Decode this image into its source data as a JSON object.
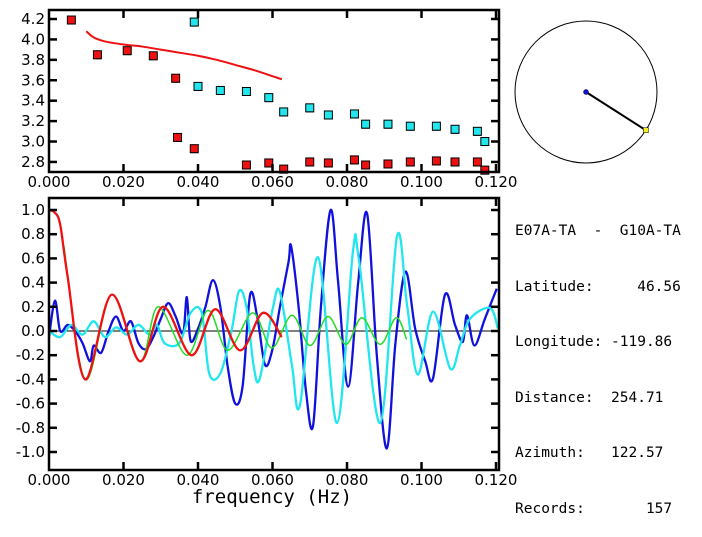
{
  "chart_data": [
    {
      "type": "scatter",
      "xlim": [
        0,
        0.12
      ],
      "ylim": [
        2.7,
        4.29
      ],
      "x_ticks": [
        "0.000",
        "0.020",
        "0.040",
        "0.060",
        "0.080",
        "0.100",
        "0.120"
      ],
      "y_ticks": [
        "2.8",
        "3.0",
        "3.2",
        "3.4",
        "3.6",
        "3.8",
        "4.0",
        "4.2"
      ],
      "grid": false,
      "series": [
        {
          "color": "#ee1111",
          "marker": "square",
          "points": [
            [
              0.006,
              4.19
            ],
            [
              0.013,
              3.85
            ],
            [
              0.021,
              3.89
            ],
            [
              0.028,
              3.84
            ],
            [
              0.034,
              3.62
            ],
            [
              0.0345,
              3.04
            ],
            [
              0.039,
              2.93
            ],
            [
              0.053,
              2.77
            ],
            [
              0.059,
              2.79
            ],
            [
              0.063,
              2.73
            ],
            [
              0.07,
              2.8
            ],
            [
              0.075,
              2.79
            ],
            [
              0.082,
              2.82
            ],
            [
              0.085,
              2.77
            ],
            [
              0.091,
              2.78
            ],
            [
              0.097,
              2.8
            ],
            [
              0.104,
              2.81
            ],
            [
              0.109,
              2.8
            ],
            [
              0.115,
              2.8
            ],
            [
              0.117,
              2.72
            ]
          ]
        },
        {
          "color": "#22e6ee",
          "marker": "square",
          "points": [
            [
              0.039,
              4.17
            ],
            [
              0.04,
              3.54
            ],
            [
              0.046,
              3.5
            ],
            [
              0.053,
              3.49
            ],
            [
              0.059,
              3.43
            ],
            [
              0.063,
              3.29
            ],
            [
              0.07,
              3.33
            ],
            [
              0.075,
              3.26
            ],
            [
              0.082,
              3.27
            ],
            [
              0.085,
              3.17
            ],
            [
              0.091,
              3.17
            ],
            [
              0.097,
              3.15
            ],
            [
              0.104,
              3.15
            ],
            [
              0.109,
              3.12
            ],
            [
              0.115,
              3.1
            ],
            [
              0.117,
              3.0
            ]
          ]
        },
        {
          "color": "#ee1111",
          "marker": "line",
          "points": [
            [
              0.01,
              4.08
            ],
            [
              0.012,
              4.02
            ],
            [
              0.015,
              3.98
            ],
            [
              0.02,
              3.95
            ],
            [
              0.025,
              3.93
            ],
            [
              0.03,
              3.9
            ],
            [
              0.035,
              3.87
            ],
            [
              0.04,
              3.84
            ],
            [
              0.045,
              3.8
            ],
            [
              0.05,
              3.75
            ],
            [
              0.055,
              3.7
            ],
            [
              0.06,
              3.64
            ],
            [
              0.0625,
              3.61
            ]
          ]
        }
      ]
    },
    {
      "type": "line",
      "xlabel": "frequency (Hz)",
      "xlim": [
        0,
        0.12
      ],
      "ylim": [
        -1.15,
        1.1
      ],
      "x_ticks": [
        "0.000",
        "0.020",
        "0.040",
        "0.060",
        "0.080",
        "0.100",
        "0.120"
      ],
      "y_ticks": [
        "1.0",
        "0.8",
        "0.6",
        "0.4",
        "0.2",
        "0.0",
        "-0.2",
        "-0.4",
        "-0.6",
        "-0.8",
        "-1.0"
      ],
      "grid": false,
      "zero_line": true,
      "series": [
        {
          "color": "#1111dd",
          "points": [
            [
              0,
              -0.05
            ],
            [
              0.0016,
              0.25
            ],
            [
              0.003,
              0.0
            ],
            [
              0.005,
              0.05
            ],
            [
              0.007,
              0.0
            ],
            [
              0.009,
              -0.1
            ],
            [
              0.011,
              -0.25
            ],
            [
              0.012,
              -0.12
            ],
            [
              0.014,
              -0.18
            ],
            [
              0.016,
              0.0
            ],
            [
              0.018,
              0.12
            ],
            [
              0.02,
              0.0
            ],
            [
              0.022,
              0.08
            ],
            [
              0.024,
              -0.1
            ],
            [
              0.026,
              -0.15
            ],
            [
              0.028,
              -0.05
            ],
            [
              0.03,
              0.1
            ],
            [
              0.032,
              0.23
            ],
            [
              0.034,
              0.12
            ],
            [
              0.036,
              -0.02
            ],
            [
              0.037,
              0.28
            ],
            [
              0.038,
              -0.08
            ],
            [
              0.04,
              0.02
            ],
            [
              0.042,
              0.2
            ],
            [
              0.044,
              0.42
            ],
            [
              0.046,
              0.2
            ],
            [
              0.048,
              -0.3
            ],
            [
              0.05,
              -0.6
            ],
            [
              0.052,
              -0.45
            ],
            [
              0.054,
              0.3
            ],
            [
              0.056,
              0.1
            ],
            [
              0.058,
              -0.28
            ],
            [
              0.06,
              -0.15
            ],
            [
              0.062,
              0.2
            ],
            [
              0.0643,
              0.57
            ],
            [
              0.065,
              0.7
            ],
            [
              0.067,
              0.2
            ],
            [
              0.069,
              -0.5
            ],
            [
              0.0709,
              -0.78
            ],
            [
              0.073,
              0.2
            ],
            [
              0.0756,
              1.0
            ],
            [
              0.0776,
              0.41
            ],
            [
              0.0803,
              -0.46
            ],
            [
              0.083,
              0.4
            ],
            [
              0.0854,
              0.97
            ],
            [
              0.088,
              -0.2
            ],
            [
              0.0907,
              -0.97
            ],
            [
              0.093,
              -0.1
            ],
            [
              0.0957,
              0.49
            ],
            [
              0.0983,
              0.02
            ],
            [
              0.101,
              -0.25
            ],
            [
              0.1031,
              -0.39
            ],
            [
              0.1063,
              0.3
            ],
            [
              0.109,
              0.05
            ],
            [
              0.1111,
              -0.09
            ],
            [
              0.1122,
              0.13
            ],
            [
              0.1142,
              -0.12
            ],
            [
              0.117,
              0.1
            ],
            [
              0.1202,
              0.35
            ]
          ]
        },
        {
          "color": "#22e6ee",
          "points": [
            [
              0,
              0.0
            ],
            [
              0.003,
              -0.05
            ],
            [
              0.006,
              0.05
            ],
            [
              0.009,
              -0.03
            ],
            [
              0.012,
              0.08
            ],
            [
              0.015,
              -0.05
            ],
            [
              0.018,
              0.03
            ],
            [
              0.021,
              -0.03
            ],
            [
              0.024,
              0.05
            ],
            [
              0.027,
              -0.03
            ],
            [
              0.029,
              0.05
            ],
            [
              0.031,
              -0.1
            ],
            [
              0.035,
              -0.1
            ],
            [
              0.038,
              0.15
            ],
            [
              0.041,
              0.15
            ],
            [
              0.043,
              -0.35
            ],
            [
              0.046,
              -0.35
            ],
            [
              0.049,
              0.0
            ],
            [
              0.051,
              0.33
            ],
            [
              0.053,
              0.2
            ],
            [
              0.055,
              -0.3
            ],
            [
              0.0566,
              -0.39
            ],
            [
              0.0601,
              0.19
            ],
            [
              0.062,
              0.32
            ],
            [
              0.0652,
              -0.28
            ],
            [
              0.0674,
              -0.61
            ],
            [
              0.0722,
              0.61
            ],
            [
              0.0773,
              -0.76
            ],
            [
              0.0816,
              0.66
            ],
            [
              0.0832,
              0.59
            ],
            [
              0.0889,
              -0.76
            ],
            [
              0.0934,
              0.78
            ],
            [
              0.0961,
              0.22
            ],
            [
              0.099,
              -0.36
            ],
            [
              0.1031,
              0.16
            ],
            [
              0.1077,
              -0.31
            ],
            [
              0.1103,
              -0.12
            ],
            [
              0.113,
              0.1
            ],
            [
              0.1184,
              0.19
            ],
            [
              0.1205,
              0.02
            ]
          ]
        },
        {
          "color": "#22dd22",
          "points": [
            [
              0.004,
              0.7
            ],
            [
              0.0097,
              -0.4
            ],
            [
              0.0168,
              0.3
            ],
            [
              0.0244,
              -0.25
            ],
            [
              0.0293,
              0.2
            ],
            [
              0.037,
              -0.2
            ],
            [
              0.0427,
              0.17
            ],
            [
              0.048,
              -0.16
            ],
            [
              0.0547,
              0.15
            ],
            [
              0.0598,
              -0.14
            ],
            [
              0.0652,
              0.13
            ],
            [
              0.0701,
              -0.12
            ],
            [
              0.0749,
              0.12
            ],
            [
              0.0797,
              -0.11
            ],
            [
              0.084,
              0.11
            ],
            [
              0.0889,
              -0.11
            ],
            [
              0.0932,
              0.11
            ],
            [
              0.096,
              -0.07
            ]
          ]
        },
        {
          "color": "#ee1111",
          "points": [
            [
              0,
              1.0
            ],
            [
              0.0015,
              0.98
            ],
            [
              0.003,
              0.88
            ],
            [
              0.005,
              0.45
            ],
            [
              0.0097,
              -0.4
            ],
            [
              0.0168,
              0.3
            ],
            [
              0.0244,
              -0.25
            ],
            [
              0.0306,
              0.2
            ],
            [
              0.0383,
              -0.2
            ],
            [
              0.0446,
              0.18
            ],
            [
              0.0513,
              -0.16
            ],
            [
              0.0574,
              0.15
            ],
            [
              0.0625,
              -0.05
            ]
          ]
        }
      ]
    }
  ],
  "map": {
    "azimuth": 122.57,
    "center_color": "#1111dd",
    "station_color": "#eeee22"
  },
  "info": {
    "pair": "E07A-TA  -  G10A-TA",
    "latitude": "Latitude:     46.56",
    "longitude": "Longitude: -119.86",
    "distance": "Distance:  254.71",
    "azimuth": "Azimuth:   122.57",
    "records": "Records:       157"
  }
}
